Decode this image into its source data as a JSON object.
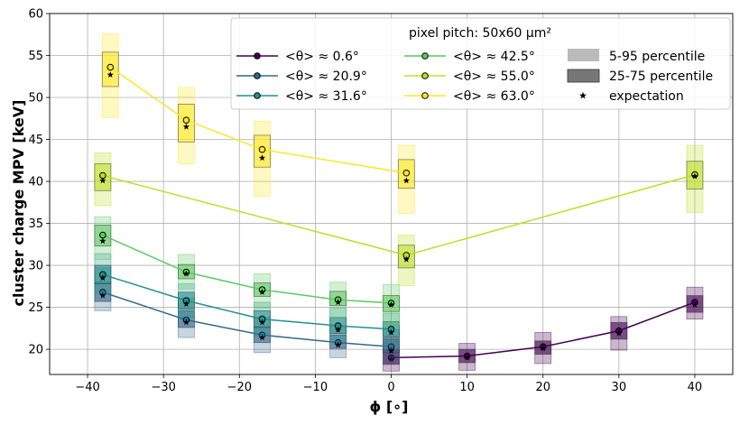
{
  "chart_data": {
    "type": "line",
    "title": "",
    "xlabel": "ϕ [∘]",
    "ylabel": "cluster charge MPV [keV]",
    "xlim": [
      -45,
      45
    ],
    "ylim": [
      17,
      60
    ],
    "xticks": [
      -40,
      -30,
      -20,
      -10,
      0,
      10,
      20,
      30,
      40
    ],
    "xtick_labels": [
      "−40",
      "−30",
      "−20",
      "−10",
      "0",
      "10",
      "20",
      "30",
      "40"
    ],
    "yticks": [
      20,
      25,
      30,
      35,
      40,
      45,
      50,
      55,
      60
    ],
    "grid": true,
    "legend_title": "pixel pitch: 50x60 μm²",
    "legend_position": "top-right",
    "legend_extra": {
      "p595": "5-95 percentile",
      "p2575": "25-75 percentile",
      "expectation": "expectation"
    },
    "series": [
      {
        "name": "<θ> ≈ 0.6°",
        "color": "#440154",
        "x": [
          0,
          10,
          20,
          30,
          40
        ],
        "mpv": [
          19.0,
          19.2,
          20.3,
          22.2,
          25.6
        ],
        "expect": [
          18.8,
          19.0,
          20.1,
          21.9,
          25.3
        ],
        "p5": [
          17.4,
          17.5,
          18.3,
          19.9,
          23.6
        ],
        "p25": [
          18.2,
          18.4,
          19.4,
          21.2,
          24.4
        ],
        "p75": [
          20.0,
          20.0,
          21.0,
          23.2,
          26.4
        ],
        "p95": [
          21.4,
          20.7,
          22.0,
          23.9,
          27.4
        ]
      },
      {
        "name": "<θ> ≈ 20.9°",
        "color": "#31688e",
        "x": [
          -38,
          -27,
          -17,
          -7,
          0
        ],
        "mpv": [
          26.8,
          23.5,
          21.7,
          20.8,
          20.3
        ],
        "expect": [
          26.4,
          23.2,
          21.4,
          20.5,
          19.8
        ],
        "p5": [
          24.6,
          21.4,
          19.6,
          19.0,
          18.6
        ],
        "p25": [
          25.7,
          22.6,
          20.8,
          20.1,
          19.6
        ],
        "p75": [
          28.0,
          24.6,
          22.7,
          21.7,
          21.2
        ],
        "p95": [
          29.7,
          26.1,
          23.8,
          22.8,
          22.3
        ]
      },
      {
        "name": "<θ> ≈ 31.6°",
        "color": "#21918c",
        "x": [
          -38,
          -27,
          -17,
          -7,
          0
        ],
        "mpv": [
          28.9,
          25.8,
          23.6,
          22.8,
          22.4
        ],
        "expect": [
          28.5,
          25.4,
          23.2,
          22.3,
          22.0
        ],
        "p5": [
          26.7,
          23.8,
          21.6,
          20.9,
          20.4
        ],
        "p25": [
          27.8,
          24.8,
          22.6,
          21.9,
          21.5
        ],
        "p75": [
          30.0,
          26.8,
          24.6,
          23.8,
          23.3
        ],
        "p95": [
          31.4,
          27.8,
          25.6,
          24.9,
          24.3
        ]
      },
      {
        "name": "<θ> ≈ 42.5°",
        "color": "#5ec962",
        "x": [
          -38,
          -27,
          -17,
          -7,
          0
        ],
        "mpv": [
          33.6,
          29.2,
          27.1,
          25.9,
          25.5
        ],
        "expect": [
          32.9,
          29.0,
          26.8,
          25.6,
          25.3
        ],
        "p5": [
          30.7,
          27.2,
          24.9,
          23.8,
          22.9
        ],
        "p25": [
          32.3,
          28.4,
          26.3,
          25.2,
          24.5
        ],
        "p75": [
          34.8,
          30.1,
          27.9,
          26.9,
          26.4
        ],
        "p95": [
          35.8,
          31.3,
          29.0,
          28.0,
          27.7
        ]
      },
      {
        "name": "<θ> ≈ 55.0°",
        "color": "#bddf26",
        "x": [
          -38,
          2,
          40
        ],
        "mpv": [
          40.7,
          31.2,
          40.8
        ],
        "expect": [
          40.1,
          30.7,
          40.6
        ],
        "p5": [
          37.1,
          27.6,
          36.3
        ],
        "p25": [
          38.9,
          29.7,
          39.1
        ],
        "p75": [
          42.1,
          32.4,
          42.4
        ],
        "p95": [
          43.4,
          33.6,
          44.3
        ]
      },
      {
        "name": "<θ> ≈ 63.0°",
        "color": "#fde725",
        "x": [
          -37,
          -27,
          -17,
          2
        ],
        "mpv": [
          53.6,
          47.3,
          43.8,
          41.0
        ],
        "expect": [
          52.7,
          46.5,
          42.8,
          40.1
        ],
        "p5": [
          47.6,
          42.1,
          38.2,
          36.2
        ],
        "p25": [
          51.3,
          44.7,
          41.7,
          39.2
        ],
        "p75": [
          55.4,
          49.2,
          45.5,
          42.6
        ],
        "p95": [
          57.6,
          51.2,
          47.2,
          44.3
        ]
      }
    ]
  }
}
